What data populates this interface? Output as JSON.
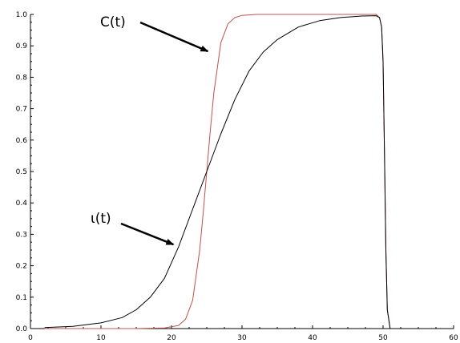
{
  "chart_data": {
    "type": "line",
    "title": "",
    "xlabel": "",
    "ylabel": "",
    "xlim": [
      0,
      60
    ],
    "ylim": [
      0,
      1
    ],
    "grid": false,
    "x_ticks": [
      "0",
      "10",
      "20",
      "30",
      "40",
      "50",
      "60"
    ],
    "y_ticks": [
      "0.0",
      "0.1",
      "0.2",
      "0.3",
      "0.4",
      "0.5",
      "0.6",
      "0.7",
      "0.8",
      "0.9",
      "1.0"
    ],
    "series": [
      {
        "name": "C(t)",
        "color": "#c0504d",
        "x": [
          2,
          15,
          19,
          21,
          22,
          23,
          24,
          24.5,
          25,
          25.5,
          26,
          27,
          28,
          29,
          30,
          32,
          36,
          40,
          45,
          49,
          49.5,
          49.8,
          50,
          50.2,
          50.4,
          50.6,
          51
        ],
        "y": [
          0.0,
          0.0,
          0.002,
          0.01,
          0.03,
          0.09,
          0.25,
          0.37,
          0.5,
          0.63,
          0.75,
          0.91,
          0.97,
          0.99,
          0.997,
          1.0,
          1.0,
          1.0,
          1.0,
          1.0,
          0.99,
          0.96,
          0.85,
          0.55,
          0.25,
          0.06,
          0.0
        ]
      },
      {
        "name": "ι(t)",
        "color": "#000000",
        "x": [
          2,
          6,
          10,
          13,
          15,
          17,
          19,
          21,
          23,
          25,
          27,
          29,
          31,
          33,
          35,
          38,
          41,
          44,
          47,
          49,
          49.5,
          49.8,
          50,
          50.2,
          50.4,
          50.6,
          51
        ],
        "y": [
          0.003,
          0.007,
          0.018,
          0.035,
          0.06,
          0.1,
          0.16,
          0.26,
          0.38,
          0.5,
          0.62,
          0.73,
          0.82,
          0.88,
          0.92,
          0.96,
          0.98,
          0.99,
          0.995,
          0.996,
          0.99,
          0.96,
          0.85,
          0.55,
          0.25,
          0.06,
          0.0
        ]
      }
    ],
    "annotations": [
      {
        "text": "C(t)",
        "points_to": {
          "x": 25.5,
          "y": 0.88
        }
      },
      {
        "text": "ι(t)",
        "points_to": {
          "x": 20.5,
          "y": 0.26
        }
      }
    ]
  }
}
